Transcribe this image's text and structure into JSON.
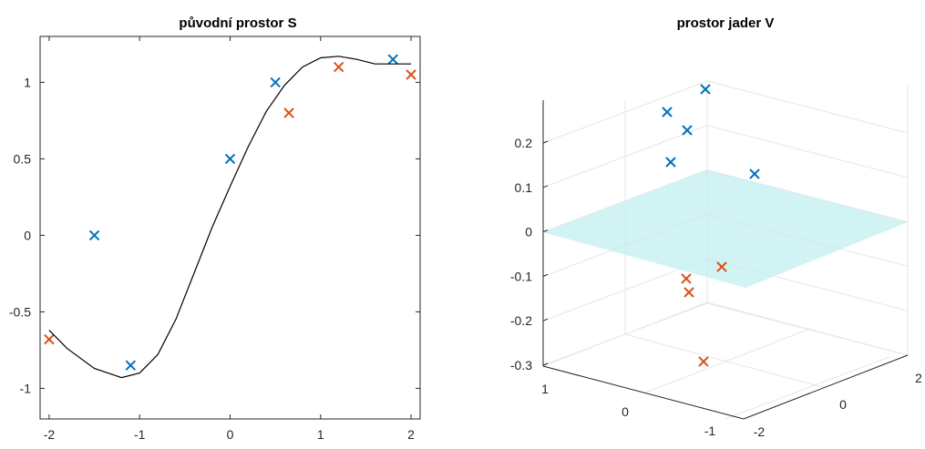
{
  "chart_data": [
    {
      "type": "scatter",
      "title": "původní prostor S",
      "xlim": [
        -2.1,
        2.1
      ],
      "ylim": [
        -1.2,
        1.3
      ],
      "xticks": [
        -2,
        -1,
        0,
        1,
        2
      ],
      "yticks": [
        -1,
        -0.5,
        0,
        0.5,
        1
      ],
      "xtick_labels": [
        "-2",
        "-1",
        "0",
        "1",
        "2"
      ],
      "ytick_labels": [
        "-1",
        "-0.5",
        "0",
        "0.5",
        "1"
      ],
      "grid": false,
      "box": true,
      "series": [
        {
          "marker": "x",
          "color": "#0072BD",
          "points": [
            [
              -1.5,
              0.0
            ],
            [
              -1.1,
              -0.85
            ],
            [
              0.0,
              0.5
            ],
            [
              0.5,
              1.0
            ],
            [
              1.8,
              1.15
            ]
          ]
        },
        {
          "marker": "x",
          "color": "#D95319",
          "points": [
            [
              -2.0,
              -0.68
            ],
            [
              0.65,
              0.8
            ],
            [
              1.2,
              1.1
            ],
            [
              2.0,
              1.05
            ]
          ]
        },
        {
          "type": "line",
          "color": "#000000",
          "points": [
            [
              -2.0,
              -0.62
            ],
            [
              -1.8,
              -0.74
            ],
            [
              -1.5,
              -0.87
            ],
            [
              -1.2,
              -0.93
            ],
            [
              -1.0,
              -0.9
            ],
            [
              -0.8,
              -0.78
            ],
            [
              -0.6,
              -0.55
            ],
            [
              -0.4,
              -0.25
            ],
            [
              -0.2,
              0.05
            ],
            [
              0.0,
              0.32
            ],
            [
              0.2,
              0.58
            ],
            [
              0.4,
              0.81
            ],
            [
              0.6,
              0.98
            ],
            [
              0.8,
              1.1
            ],
            [
              1.0,
              1.16
            ],
            [
              1.2,
              1.17
            ],
            [
              1.4,
              1.15
            ],
            [
              1.6,
              1.12
            ],
            [
              1.8,
              1.12
            ],
            [
              2.0,
              1.12
            ]
          ]
        }
      ]
    },
    {
      "type": "scatter",
      "title": "prostor jader V",
      "projection": "3d",
      "zticks": [
        -0.3,
        -0.2,
        -0.1,
        0,
        0.1,
        0.2
      ],
      "ztick_labels": [
        "-0.3",
        "-0.2",
        "-0.1",
        "0",
        "0.1",
        "0.2"
      ],
      "yticks": [
        1,
        0,
        -1
      ],
      "ytick_labels": [
        "1",
        "0",
        "-1"
      ],
      "xticks": [
        -2,
        0,
        2
      ],
      "xtick_labels": [
        "-2",
        "0",
        "2"
      ],
      "grid": true,
      "plane": {
        "z": 0,
        "color": "#bfeeee"
      },
      "series": [
        {
          "marker": "x",
          "color": "#0072BD",
          "points": [
            {
              "label_z": 0.28
            },
            {
              "label_z": 0.25
            },
            {
              "label_z": 0.23
            },
            {
              "label_z": 0.16
            },
            {
              "label_z": 0.13
            }
          ]
        },
        {
          "marker": "x",
          "color": "#D95319",
          "points": [
            {
              "label_z": -0.08
            },
            {
              "label_z": -0.11
            },
            {
              "label_z": -0.14
            },
            {
              "label_z": -0.29
            }
          ]
        }
      ]
    }
  ]
}
